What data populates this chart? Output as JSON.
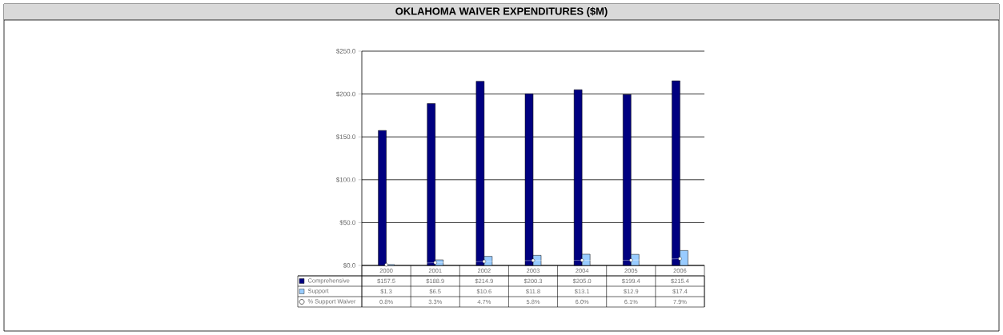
{
  "chart_data": {
    "type": "bar",
    "title": "OKLAHOMA WAIVER EXPENDITURES ($M)",
    "categories": [
      "2000",
      "2001",
      "2002",
      "2003",
      "2004",
      "2005",
      "2006"
    ],
    "series": [
      {
        "name": "Comprehensive",
        "color": "#000080",
        "values": [
          157.5,
          188.9,
          214.9,
          200.3,
          205.0,
          199.4,
          215.4
        ],
        "value_labels": [
          "$157.5",
          "$188.9",
          "$214.9",
          "$200.3",
          "$205.0",
          "$199.4",
          "$215.4"
        ]
      },
      {
        "name": "Support",
        "color": "#99ccff",
        "values": [
          1.3,
          6.5,
          10.6,
          11.8,
          13.1,
          12.9,
          17.4
        ],
        "value_labels": [
          "$1.3",
          "$6.5",
          "$10.6",
          "$11.8",
          "$13.1",
          "$12.9",
          "$17.4"
        ]
      },
      {
        "name": "% Support Waiver",
        "type": "line",
        "marker": "circle",
        "color": "#ffffff",
        "values": [
          0.8,
          3.3,
          4.7,
          5.8,
          6.0,
          6.1,
          7.9
        ],
        "value_labels": [
          "0.8%",
          "3.3%",
          "4.7%",
          "5.8%",
          "6.0%",
          "6.1%",
          "7.9%"
        ]
      }
    ],
    "ylim": [
      0,
      250
    ],
    "yticks": [
      {
        "value": 0,
        "label": "$0.0"
      },
      {
        "value": 50,
        "label": "$50.0"
      },
      {
        "value": 100,
        "label": "$100.0"
      },
      {
        "value": 150,
        "label": "$150.0"
      },
      {
        "value": 200,
        "label": "$200.0"
      },
      {
        "value": 250,
        "label": "$250.0"
      }
    ],
    "grid": "y",
    "legend": "bottom"
  }
}
